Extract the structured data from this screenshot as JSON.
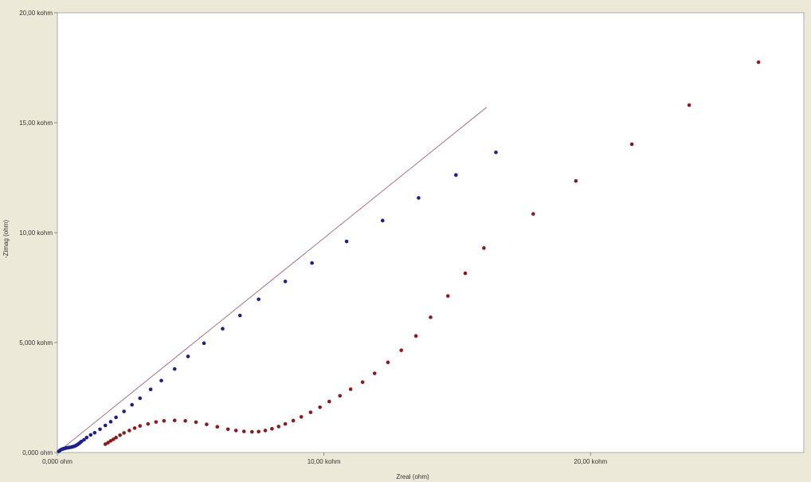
{
  "chart_data": {
    "type": "scatter",
    "title": "",
    "xlabel": "Zreal (ohm)",
    "ylabel": "-Zimag (ohm)",
    "xlim": [
      0,
      28000
    ],
    "ylim": [
      0,
      20000
    ],
    "grid": false,
    "x_ticks": [
      {
        "value": 0,
        "label": "0,000 ohm"
      },
      {
        "value": 10000,
        "label": "10,00 kohm"
      },
      {
        "value": 20000,
        "label": "20,00 kohm"
      }
    ],
    "y_ticks": [
      {
        "value": 0,
        "label": "0,000 ohm"
      },
      {
        "value": 5000,
        "label": "5,000 kohm"
      },
      {
        "value": 10000,
        "label": "10,00 kohm"
      },
      {
        "value": 15000,
        "label": "15,00 kohm"
      },
      {
        "value": 20000,
        "label": "20,00 kohm"
      }
    ],
    "series": [
      {
        "color": "#1c1f8c",
        "marker": "point",
        "points": [
          [
            50,
            50
          ],
          [
            100,
            100
          ],
          [
            150,
            140
          ],
          [
            200,
            160
          ],
          [
            250,
            180
          ],
          [
            300,
            195
          ],
          [
            350,
            210
          ],
          [
            400,
            220
          ],
          [
            450,
            230
          ],
          [
            500,
            240
          ],
          [
            550,
            255
          ],
          [
            600,
            270
          ],
          [
            650,
            290
          ],
          [
            700,
            320
          ],
          [
            750,
            360
          ],
          [
            800,
            400
          ],
          [
            850,
            450
          ],
          [
            900,
            500
          ],
          [
            1000,
            580
          ],
          [
            1100,
            680
          ],
          [
            1250,
            800
          ],
          [
            1400,
            900
          ],
          [
            1600,
            1060
          ],
          [
            1800,
            1230
          ],
          [
            2000,
            1400
          ],
          [
            2200,
            1600
          ],
          [
            2500,
            1870
          ],
          [
            2800,
            2170
          ],
          [
            3100,
            2470
          ],
          [
            3500,
            2870
          ],
          [
            3900,
            3270
          ],
          [
            4400,
            3800
          ],
          [
            4900,
            4370
          ],
          [
            5500,
            4970
          ],
          [
            6200,
            5630
          ],
          [
            6850,
            6230
          ],
          [
            7550,
            6970
          ],
          [
            8550,
            7780
          ],
          [
            9550,
            8620
          ],
          [
            10850,
            9600
          ],
          [
            12200,
            10550
          ],
          [
            13550,
            11580
          ],
          [
            14950,
            12620
          ],
          [
            16450,
            13650
          ]
        ]
      },
      {
        "color": "#8b1a1a",
        "marker": "point",
        "points": [
          [
            1800,
            380
          ],
          [
            1900,
            450
          ],
          [
            2000,
            530
          ],
          [
            2100,
            600
          ],
          [
            2200,
            680
          ],
          [
            2350,
            790
          ],
          [
            2500,
            890
          ],
          [
            2700,
            1000
          ],
          [
            2900,
            1110
          ],
          [
            3100,
            1210
          ],
          [
            3400,
            1300
          ],
          [
            3700,
            1390
          ],
          [
            4000,
            1440
          ],
          [
            4400,
            1460
          ],
          [
            4800,
            1440
          ],
          [
            5200,
            1380
          ],
          [
            5600,
            1280
          ],
          [
            6000,
            1170
          ],
          [
            6400,
            1060
          ],
          [
            6700,
            1000
          ],
          [
            7000,
            960
          ],
          [
            7300,
            940
          ],
          [
            7550,
            950
          ],
          [
            7800,
            1000
          ],
          [
            8050,
            1080
          ],
          [
            8300,
            1180
          ],
          [
            8550,
            1300
          ],
          [
            8850,
            1450
          ],
          [
            9150,
            1620
          ],
          [
            9500,
            1830
          ],
          [
            9850,
            2060
          ],
          [
            10200,
            2320
          ],
          [
            10600,
            2580
          ],
          [
            11000,
            2880
          ],
          [
            11450,
            3200
          ],
          [
            11900,
            3600
          ],
          [
            12400,
            4100
          ],
          [
            12900,
            4650
          ],
          [
            13450,
            5300
          ],
          [
            14000,
            6150
          ],
          [
            14650,
            7120
          ],
          [
            15300,
            8150
          ],
          [
            16000,
            9300
          ],
          [
            17850,
            10850
          ],
          [
            19450,
            12350
          ],
          [
            21550,
            14020
          ],
          [
            23700,
            15800
          ],
          [
            26300,
            17750
          ]
        ]
      }
    ],
    "reference_line": {
      "color": "#a8708a",
      "from": [
        0,
        0
      ],
      "to": [
        16100,
        15700
      ]
    }
  }
}
